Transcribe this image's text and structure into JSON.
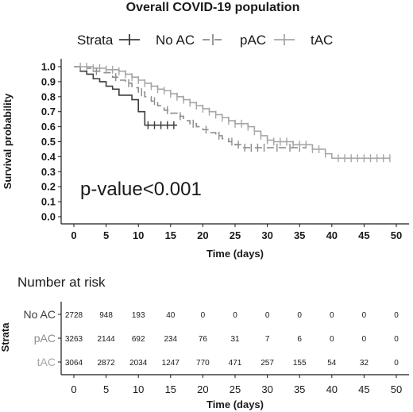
{
  "chart_data": {
    "type": "line",
    "subtype": "kaplan-meier",
    "title": "Overall COVID-19 population",
    "xlabel": "Time",
    "xlabel_unit": "(days)",
    "ylabel": "Survival probability",
    "xlim": [
      0,
      50
    ],
    "ylim": [
      0,
      1.0
    ],
    "xticks": [
      "0",
      "5",
      "10",
      "15",
      "20",
      "25",
      "30",
      "35",
      "40",
      "45",
      "50"
    ],
    "yticks": [
      "0.0",
      "0.1",
      "0.2",
      "0.3",
      "0.4",
      "0.5",
      "0.6",
      "0.7",
      "0.8",
      "0.9",
      "1.0"
    ],
    "grid": false,
    "legend": {
      "title": "Strata",
      "position": "top",
      "entries": [
        "No AC",
        "pAC",
        "tAC"
      ]
    },
    "annotation": "p-value<0.001",
    "series": [
      {
        "name": "No AC",
        "color": "#3d3d3d",
        "dash": "solid",
        "steps": [
          [
            0,
            1.0
          ],
          [
            1,
            0.97
          ],
          [
            2,
            0.95
          ],
          [
            3,
            0.92
          ],
          [
            4,
            0.9
          ],
          [
            5,
            0.87
          ],
          [
            6,
            0.85
          ],
          [
            7,
            0.81
          ],
          [
            9,
            0.78
          ],
          [
            10,
            0.7
          ],
          [
            11,
            0.61
          ],
          [
            16,
            0.61
          ]
        ],
        "censor": [
          11.5,
          12.5,
          13.5,
          14.5,
          15.5
        ]
      },
      {
        "name": "pAC",
        "color": "#8c8c8c",
        "dash": "dashed",
        "steps": [
          [
            0,
            1.0
          ],
          [
            2,
            0.99
          ],
          [
            3,
            0.97
          ],
          [
            4,
            0.96
          ],
          [
            6,
            0.93
          ],
          [
            7,
            0.91
          ],
          [
            8,
            0.89
          ],
          [
            9,
            0.86
          ],
          [
            10,
            0.83
          ],
          [
            11,
            0.8
          ],
          [
            12,
            0.77
          ],
          [
            13,
            0.74
          ],
          [
            14,
            0.71
          ],
          [
            15,
            0.69
          ],
          [
            16,
            0.67
          ],
          [
            17,
            0.64
          ],
          [
            18,
            0.62
          ],
          [
            19,
            0.6
          ],
          [
            20,
            0.58
          ],
          [
            21,
            0.56
          ],
          [
            22,
            0.54
          ],
          [
            23,
            0.52
          ],
          [
            24,
            0.5
          ],
          [
            25,
            0.48
          ],
          [
            26,
            0.46
          ],
          [
            36,
            0.46
          ]
        ],
        "censor": [
          3.5,
          6.5,
          8.5,
          10.5,
          12.5,
          14.5,
          16.5,
          18.5,
          20.5,
          22.5,
          24.5,
          25.5,
          26.5,
          27.5,
          28.5,
          29.5,
          31.5,
          33.5,
          35
        ]
      },
      {
        "name": "tAC",
        "color": "#a6a6a6",
        "dash": "solid",
        "steps": [
          [
            0,
            1.0
          ],
          [
            3,
            0.99
          ],
          [
            5,
            0.98
          ],
          [
            7,
            0.97
          ],
          [
            8,
            0.95
          ],
          [
            9,
            0.93
          ],
          [
            10,
            0.91
          ],
          [
            11,
            0.89
          ],
          [
            12,
            0.87
          ],
          [
            13,
            0.85
          ],
          [
            14,
            0.84
          ],
          [
            15,
            0.82
          ],
          [
            16,
            0.8
          ],
          [
            17,
            0.78
          ],
          [
            18,
            0.76
          ],
          [
            19,
            0.74
          ],
          [
            20,
            0.72
          ],
          [
            21,
            0.7
          ],
          [
            22,
            0.68
          ],
          [
            23,
            0.66
          ],
          [
            24,
            0.64
          ],
          [
            25,
            0.62
          ],
          [
            27,
            0.6
          ],
          [
            28,
            0.57
          ],
          [
            29,
            0.54
          ],
          [
            30,
            0.51
          ],
          [
            31,
            0.5
          ],
          [
            34,
            0.48
          ],
          [
            37,
            0.45
          ],
          [
            39,
            0.42
          ],
          [
            40,
            0.39
          ],
          [
            49,
            0.39
          ]
        ],
        "censor": [
          1,
          2,
          3,
          4,
          5,
          6,
          7,
          8,
          9,
          10,
          11,
          12,
          13,
          14,
          15,
          16,
          17,
          18,
          19,
          20,
          21,
          22,
          23,
          24,
          25,
          26,
          27,
          28,
          29,
          30,
          31,
          32,
          33,
          34,
          35,
          36,
          37,
          38,
          39,
          41,
          42,
          43,
          44,
          45,
          46,
          47,
          48,
          49
        ]
      }
    ],
    "risk_table": {
      "title": "Number at risk",
      "ylabel": "Strata",
      "xlabel": "Time",
      "xlabel_unit": "(days)",
      "times": [
        "0",
        "5",
        "10",
        "15",
        "20",
        "25",
        "30",
        "35",
        "40",
        "45",
        "50"
      ],
      "rows": [
        {
          "label": "No AC",
          "color": "#3d3d3d",
          "values": [
            "2728",
            "948",
            "193",
            "40",
            "0",
            "0",
            "0",
            "0",
            "0",
            "0",
            "0"
          ]
        },
        {
          "label": "pAC",
          "color": "#8c8c8c",
          "values": [
            "3263",
            "2144",
            "692",
            "234",
            "76",
            "31",
            "7",
            "6",
            "0",
            "0",
            "0"
          ]
        },
        {
          "label": "tAC",
          "color": "#a6a6a6",
          "values": [
            "3064",
            "2872",
            "2034",
            "1247",
            "770",
            "471",
            "257",
            "155",
            "54",
            "32",
            "0"
          ]
        }
      ]
    }
  }
}
